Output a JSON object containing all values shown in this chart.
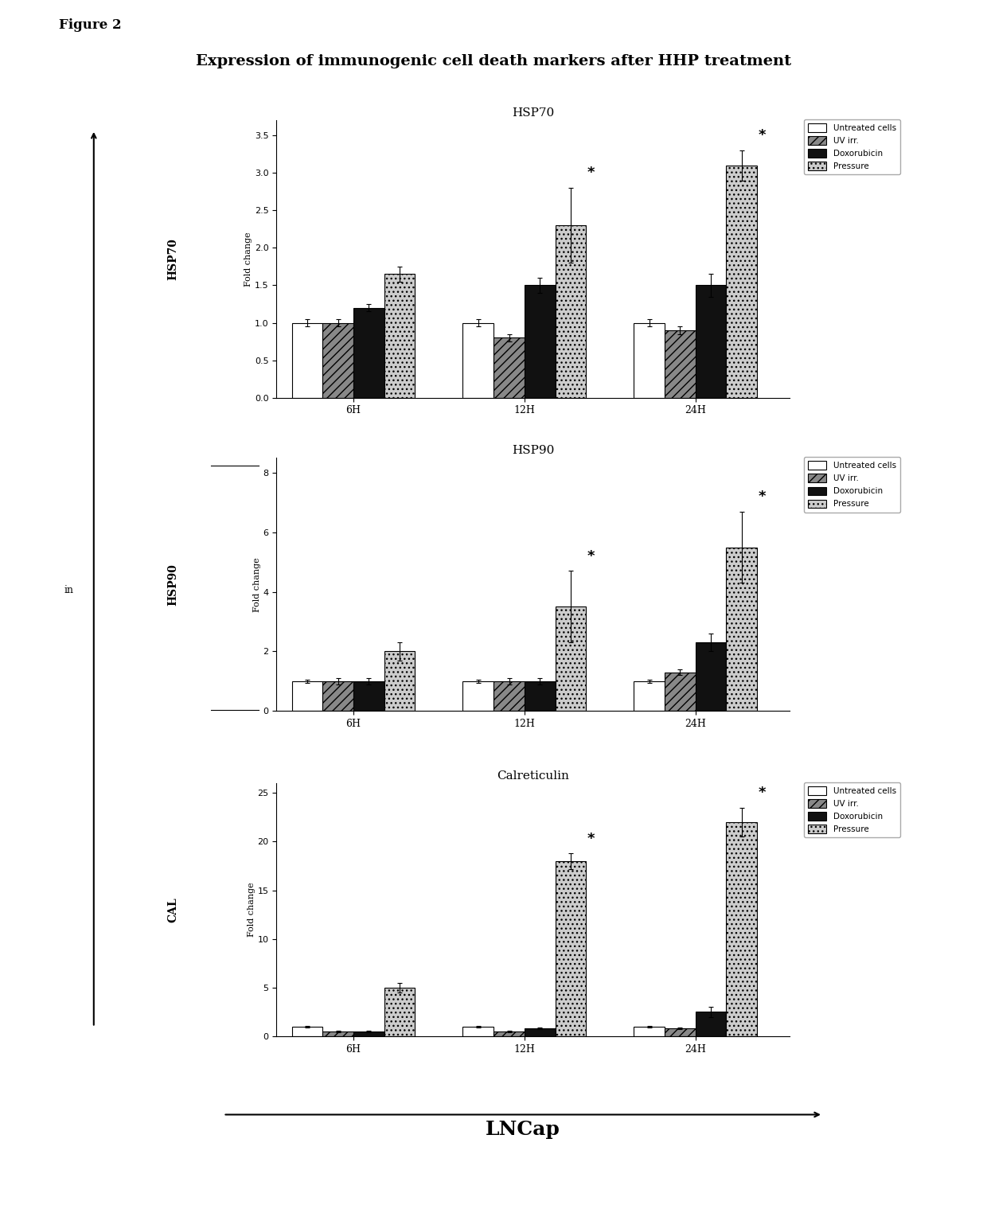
{
  "figure_title": "Expression of immunogenic cell death markers after HHP treatment",
  "figure_label": "Figure 2",
  "subplot_titles": [
    "HSP70",
    "HSP90",
    "Calreticulin"
  ],
  "y_labels_left": [
    "HSP70",
    "HSP90",
    "CAL"
  ],
  "xlabel_bottom": "LNCap",
  "ylabel": "Fold change",
  "time_points": [
    "6H",
    "12H",
    "24H"
  ],
  "legend_labels": [
    "Untreated cells",
    "UV irr.",
    "Doxorubicin",
    "Pressure"
  ],
  "hsp70": {
    "untreated": [
      1.0,
      1.0,
      1.0
    ],
    "uv": [
      1.0,
      0.8,
      0.9
    ],
    "doxorubicin": [
      1.2,
      1.5,
      1.5
    ],
    "pressure": [
      1.65,
      2.3,
      3.1
    ],
    "untreated_err": [
      0.05,
      0.05,
      0.05
    ],
    "uv_err": [
      0.05,
      0.05,
      0.05
    ],
    "doxorubicin_err": [
      0.05,
      0.1,
      0.15
    ],
    "pressure_err": [
      0.1,
      0.5,
      0.2
    ],
    "ylim": [
      0.0,
      3.7
    ],
    "yticks": [
      0.0,
      0.5,
      1.0,
      1.5,
      2.0,
      2.5,
      3.0,
      3.5
    ]
  },
  "hsp90": {
    "untreated": [
      1.0,
      1.0,
      1.0
    ],
    "uv": [
      1.0,
      1.0,
      1.3
    ],
    "doxorubicin": [
      1.0,
      1.0,
      2.3
    ],
    "pressure": [
      2.0,
      3.5,
      5.5
    ],
    "untreated_err": [
      0.05,
      0.05,
      0.05
    ],
    "uv_err": [
      0.1,
      0.1,
      0.1
    ],
    "doxorubicin_err": [
      0.1,
      0.1,
      0.3
    ],
    "pressure_err": [
      0.3,
      1.2,
      1.2
    ],
    "ylim": [
      0,
      8.5
    ],
    "yticks": [
      0,
      2,
      4,
      6,
      8
    ]
  },
  "calreticulin": {
    "untreated": [
      1.0,
      1.0,
      1.0
    ],
    "uv": [
      0.5,
      0.5,
      0.8
    ],
    "doxorubicin": [
      0.5,
      0.8,
      2.5
    ],
    "pressure": [
      5.0,
      18.0,
      22.0
    ],
    "untreated_err": [
      0.1,
      0.1,
      0.1
    ],
    "uv_err": [
      0.1,
      0.1,
      0.1
    ],
    "doxorubicin_err": [
      0.1,
      0.1,
      0.5
    ],
    "pressure_err": [
      0.5,
      0.8,
      1.5
    ],
    "ylim": [
      0,
      26
    ],
    "yticks": [
      0,
      5,
      10,
      15,
      20,
      25
    ]
  },
  "bar_groups": [
    "untreated",
    "uv",
    "doxorubicin",
    "pressure"
  ],
  "bar_colors": {
    "untreated": "#FFFFFF",
    "uv": "#888888",
    "doxorubicin": "#111111",
    "pressure": "#CCCCCC"
  },
  "bar_hatches": {
    "untreated": "",
    "uv": "///",
    "doxorubicin": "",
    "pressure": "..."
  }
}
